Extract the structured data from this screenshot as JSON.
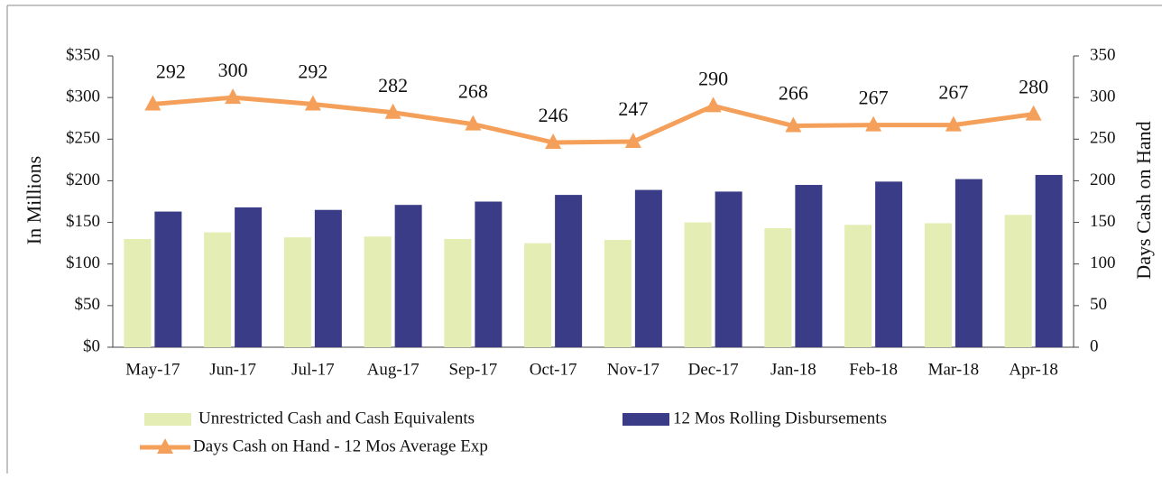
{
  "chart_data": {
    "type": "bar_line",
    "categories": [
      "May-17",
      "Jun-17",
      "Jul-17",
      "Aug-17",
      "Sep-17",
      "Oct-17",
      "Nov-17",
      "Dec-17",
      "Jan-18",
      "Feb-18",
      "Mar-18",
      "Apr-18"
    ],
    "ylabel": "In Millions",
    "y2label": "Days Cash on Hand",
    "ylim": [
      0,
      350
    ],
    "yticks": [
      {
        "value": 0,
        "label": "$0"
      },
      {
        "value": 50,
        "label": "$50"
      },
      {
        "value": 100,
        "label": "$100"
      },
      {
        "value": 150,
        "label": "$150"
      },
      {
        "value": 200,
        "label": "$200"
      },
      {
        "value": 250,
        "label": "$250"
      },
      {
        "value": 300,
        "label": "$300"
      },
      {
        "value": 350,
        "label": "$350"
      }
    ],
    "y2lim": [
      0,
      350
    ],
    "y2ticks": [
      0,
      50,
      100,
      150,
      200,
      250,
      300,
      350
    ],
    "series": [
      {
        "name": "Unrestricted Cash and Cash Equivalents",
        "type": "bar",
        "color": "#e4edb3",
        "values": [
          130,
          138,
          132,
          133,
          130,
          125,
          129,
          150,
          143,
          147,
          149,
          159
        ]
      },
      {
        "name": "12 Mos Rolling Disbursements",
        "type": "bar",
        "color": "#3a3c88",
        "values": [
          163,
          168,
          165,
          171,
          175,
          183,
          189,
          187,
          195,
          199,
          202,
          207
        ]
      },
      {
        "name": "Days Cash on Hand - 12 Mos Average Exp",
        "type": "line",
        "axis": "y2",
        "color": "#f5a05a",
        "values": [
          292,
          300,
          292,
          282,
          268,
          246,
          247,
          290,
          266,
          267,
          267,
          280
        ]
      }
    ]
  }
}
